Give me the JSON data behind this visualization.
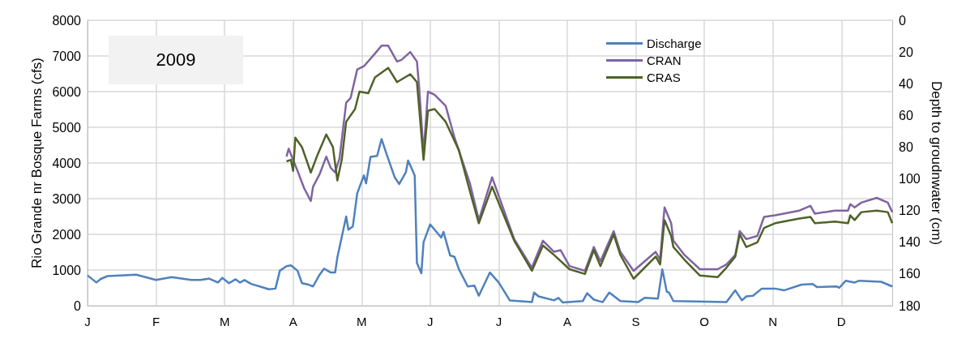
{
  "chart_data": {
    "type": "line",
    "title": "2009",
    "ylabel": "Rio Grande nr Bosque Farms (cfs)",
    "y2label": "Depth to groudnwater (cm)",
    "categories": [
      "J",
      null,
      null,
      null,
      null,
      null,
      null,
      null,
      null,
      null,
      null,
      null,
      null,
      null,
      null,
      null,
      null,
      null,
      null,
      null,
      null,
      null,
      null,
      null,
      null,
      null,
      null,
      null,
      null,
      null,
      null,
      "F",
      null,
      null,
      null,
      null,
      null,
      null,
      null,
      null,
      null,
      null,
      null,
      null,
      null,
      null,
      null,
      null,
      null,
      null,
      null,
      null,
      null,
      null,
      null,
      null,
      null,
      null,
      null,
      null,
      null,
      null,
      "M",
      null,
      null,
      null,
      null,
      null,
      null,
      null,
      null,
      null,
      null,
      null,
      null,
      null,
      null,
      null,
      null,
      null,
      null,
      null,
      null,
      null,
      null,
      null,
      null,
      null,
      null,
      null,
      null,
      null,
      null,
      "A",
      null,
      null,
      null,
      null,
      null,
      null,
      null,
      null,
      null,
      null,
      null,
      null,
      null,
      null,
      null,
      null,
      null,
      null,
      null,
      null,
      null,
      null,
      null,
      null,
      null,
      null,
      null,
      null,
      null,
      null,
      "M",
      null,
      null,
      null,
      null,
      null,
      null,
      null,
      null,
      null,
      null,
      null,
      null,
      null,
      null,
      null,
      null,
      null,
      null,
      null,
      null,
      null,
      null,
      null,
      null,
      null,
      null,
      null,
      null,
      null,
      null,
      "J",
      null,
      null,
      null,
      null,
      null,
      null,
      null,
      null,
      null,
      null,
      null,
      null,
      null,
      null,
      null,
      null,
      null,
      null,
      null,
      null,
      null,
      null,
      null,
      null,
      null,
      null,
      null,
      null,
      null,
      null,
      "J",
      null,
      null,
      null,
      null,
      null,
      null,
      null,
      null,
      null,
      null,
      null,
      null,
      null,
      null,
      null,
      null,
      null,
      null,
      null,
      null,
      null,
      null,
      null,
      null,
      null,
      null,
      null,
      null,
      null,
      null,
      "A",
      null,
      null,
      null,
      null,
      null,
      null,
      null,
      null,
      null,
      null,
      null,
      null,
      null,
      null,
      null,
      null,
      null,
      null,
      null,
      null,
      null,
      null,
      null,
      null,
      null,
      null,
      null,
      null,
      null,
      null,
      "S",
      null,
      null,
      null,
      null,
      null,
      null,
      null,
      null,
      null,
      null,
      null,
      null,
      null,
      null,
      null,
      null,
      null,
      null,
      null,
      null,
      null,
      null,
      null,
      null,
      null,
      null,
      null,
      null,
      null,
      null,
      "O",
      null,
      null,
      null,
      null,
      null,
      null,
      null,
      null,
      null,
      null,
      null,
      null,
      null,
      null,
      null,
      null,
      null,
      null,
      null,
      null,
      null,
      null,
      null,
      null,
      null,
      null,
      null,
      null,
      null,
      null,
      "N",
      null,
      null,
      null,
      null,
      null,
      null,
      null,
      null,
      null,
      null,
      null,
      null,
      null,
      null,
      null,
      null,
      null,
      null,
      null,
      null,
      null,
      null,
      null,
      null,
      null,
      null,
      null,
      null,
      null,
      null,
      "D",
      null,
      null,
      null,
      null,
      null,
      null,
      null,
      null,
      null,
      null,
      null,
      null,
      null,
      null,
      null,
      null,
      null,
      null,
      null,
      null,
      null,
      null,
      null
    ],
    "ylim": [
      0,
      8000
    ],
    "yticks": [
      0,
      1000,
      2000,
      3000,
      4000,
      5000,
      6000,
      7000,
      8000
    ],
    "y2lim": [
      180,
      0
    ],
    "y2ticks": [
      0,
      20,
      40,
      60,
      80,
      100,
      120,
      140,
      160,
      180
    ],
    "grid": true,
    "legend": "top",
    "marker": "none",
    "line_style": "solid",
    "series": [
      {
        "name": "Discharge",
        "color": "#4f81bd",
        "values": [
          850,
          null,
          null,
          null,
          650,
          null,
          750,
          null,
          null,
          830,
          null,
          null,
          null,
          null,
          null,
          null,
          null,
          null,
          null,
          null,
          null,
          null,
          870,
          null,
          null,
          null,
          null,
          null,
          null,
          null,
          null,
          720,
          null,
          null,
          null,
          null,
          null,
          null,
          800,
          null,
          null,
          null,
          null,
          null,
          null,
          null,
          null,
          720,
          null,
          null,
          null,
          720,
          null,
          null,
          null,
          760,
          null,
          null,
          null,
          650,
          null,
          780,
          null,
          null,
          630,
          null,
          null,
          740,
          null,
          650,
          null,
          720,
          null,
          null,
          610,
          null,
          null,
          null,
          null,
          null,
          500,
          null,
          460,
          null,
          null,
          480,
          null,
          980,
          null,
          null,
          1110,
          null,
          1130,
          null,
          null,
          980,
          null,
          630,
          null,
          null,
          590,
          null,
          540,
          null,
          null,
          870,
          null,
          1040,
          null,
          null,
          930,
          null,
          930,
          1350,
          null,
          null,
          null,
          2500,
          2130,
          null,
          2220,
          null,
          3150,
          null,
          null,
          3650,
          3430,
          null,
          4170,
          null,
          null,
          4200,
          null,
          4670,
          null,
          4300,
          null,
          null,
          null,
          3590,
          null,
          3410,
          null,
          null,
          3740,
          4070,
          null,
          null,
          3650,
          1200,
          null,
          910,
          1780,
          null,
          null,
          2280,
          null,
          2130,
          null,
          null,
          1910,
          2070,
          null,
          null,
          1410,
          null,
          1370,
          null,
          1020,
          null,
          null,
          null,
          540,
          null,
          null,
          560,
          null,
          280,
          null,
          null,
          null,
          null,
          930,
          null,
          null,
          null,
          650,
          null,
          null,
          null,
          null,
          150,
          null,
          null,
          null,
          null,
          null,
          null,
          null,
          null,
          null,
          100,
          370,
          null,
          260,
          null,
          null,
          null,
          null,
          null,
          null,
          150,
          null,
          220,
          null,
          90,
          null,
          null,
          null,
          null,
          null,
          null,
          null,
          null,
          130,
          null,
          350,
          null,
          null,
          170,
          null,
          null,
          null,
          100,
          null,
          null,
          370,
          null,
          null,
          null,
          null,
          130,
          null,
          null,
          null,
          null,
          null,
          null,
          null,
          100,
          null,
          null,
          220,
          null,
          null,
          null,
          null,
          null,
          200,
          null,
          1020,
          null,
          390,
          370,
          null,
          130,
          null,
          null,
          null,
          null,
          null,
          null,
          null,
          null,
          null,
          null,
          null,
          null,
          null,
          null,
          null,
          null,
          null,
          null,
          null,
          null,
          null,
          null,
          null,
          100,
          null,
          null,
          null,
          430,
          null,
          null,
          150,
          null,
          260,
          null,
          null,
          280,
          null,
          null,
          null,
          480,
          null,
          null,
          null,
          null,
          null,
          480,
          null,
          null,
          null,
          430,
          null,
          null,
          null,
          null,
          null,
          null,
          null,
          590,
          null,
          null,
          null,
          null,
          610,
          null,
          520,
          null,
          null,
          null,
          null,
          null,
          null,
          null,
          null,
          540,
          500,
          null,
          null,
          700,
          null,
          null,
          null,
          650,
          null,
          700,
          null,
          null,
          null,
          null,
          null,
          null,
          null,
          null,
          null,
          670,
          null,
          null,
          null,
          null,
          540
        ]
      },
      {
        "name": "CRAN",
        "color": "#8064a2",
        "axis": "y2",
        "values": [
          null,
          null,
          null,
          null,
          null,
          null,
          null,
          null,
          null,
          null,
          null,
          null,
          null,
          null,
          null,
          null,
          null,
          null,
          null,
          null,
          null,
          null,
          null,
          null,
          null,
          null,
          null,
          null,
          null,
          null,
          null,
          null,
          null,
          null,
          null,
          null,
          null,
          null,
          null,
          null,
          null,
          null,
          null,
          null,
          null,
          null,
          null,
          null,
          null,
          null,
          null,
          null,
          null,
          null,
          null,
          null,
          null,
          null,
          null,
          null,
          null,
          null,
          null,
          null,
          null,
          null,
          null,
          null,
          null,
          null,
          null,
          null,
          null,
          null,
          null,
          null,
          null,
          null,
          null,
          null,
          null,
          null,
          null,
          null,
          null,
          null,
          null,
          null,
          null,
          null,
          86,
          81,
          null,
          88,
          null,
          95,
          null,
          null,
          106,
          null,
          null,
          114,
          105,
          null,
          null,
          97,
          null,
          null,
          86,
          null,
          93,
          null,
          96,
          null,
          87,
          null,
          null,
          52,
          null,
          49,
          null,
          null,
          31,
          null,
          null,
          29,
          null,
          null,
          null,
          null,
          21,
          null,
          null,
          16,
          null,
          null,
          16,
          null,
          null,
          null,
          26,
          null,
          25,
          null,
          null,
          null,
          20,
          null,
          null,
          26,
          42,
          null,
          84,
          null,
          45,
          null,
          null,
          47,
          null,
          null,
          null,
          null,
          54,
          null,
          null,
          null,
          74,
          null,
          null,
          null,
          null,
          null,
          null,
          103,
          null,
          null,
          null,
          126,
          null,
          null,
          null,
          null,
          null,
          99,
          null,
          null,
          null,
          null,
          null,
          null,
          null,
          null,
          null,
          138,
          null,
          null,
          null,
          null,
          null,
          null,
          null,
          156,
          null,
          null,
          null,
          null,
          139,
          null,
          null,
          null,
          null,
          146,
          null,
          null,
          145,
          null,
          null,
          null,
          155,
          null,
          null,
          null,
          null,
          null,
          null,
          158,
          null,
          null,
          null,
          143,
          null,
          null,
          152,
          null,
          null,
          null,
          null,
          null,
          133,
          null,
          null,
          146,
          null,
          null,
          null,
          null,
          null,
          158,
          null,
          null,
          null,
          null,
          null,
          null,
          null,
          null,
          null,
          146,
          null,
          151,
          null,
          118,
          null,
          null,
          128,
          139,
          null,
          null,
          null,
          null,
          148,
          null,
          null,
          null,
          null,
          null,
          null,
          157,
          null,
          null,
          null,
          null,
          null,
          null,
          null,
          157,
          null,
          null,
          null,
          154,
          null,
          null,
          null,
          148,
          null,
          133,
          null,
          null,
          138,
          null,
          null,
          null,
          null,
          136,
          null,
          null,
          124,
          null,
          null,
          null,
          null,
          123,
          null,
          null,
          null,
          null,
          null,
          null,
          null,
          null,
          null,
          null,
          120,
          null,
          null,
          null,
          null,
          117,
          null,
          122,
          null,
          null,
          null,
          null,
          null,
          null,
          null,
          null,
          120,
          null,
          null,
          null,
          null,
          null,
          120,
          116,
          null,
          118,
          null,
          null,
          115,
          null,
          null,
          null,
          null,
          null,
          null,
          112,
          null,
          null,
          null,
          null,
          115,
          null,
          121
        ]
      },
      {
        "name": "CRAS",
        "color": "#4f6228",
        "axis": "y2",
        "values": [
          null,
          null,
          null,
          null,
          null,
          null,
          null,
          null,
          null,
          null,
          null,
          null,
          null,
          null,
          null,
          null,
          null,
          null,
          null,
          null,
          null,
          null,
          null,
          null,
          null,
          null,
          null,
          null,
          null,
          null,
          null,
          null,
          null,
          null,
          null,
          null,
          null,
          null,
          null,
          null,
          null,
          null,
          null,
          null,
          null,
          null,
          null,
          null,
          null,
          null,
          null,
          null,
          null,
          null,
          null,
          null,
          null,
          null,
          null,
          null,
          null,
          null,
          null,
          null,
          null,
          null,
          null,
          null,
          null,
          null,
          null,
          null,
          null,
          null,
          null,
          null,
          null,
          null,
          null,
          null,
          null,
          null,
          null,
          null,
          null,
          null,
          null,
          null,
          null,
          null,
          89,
          null,
          88,
          95,
          74,
          null,
          null,
          80,
          null,
          null,
          null,
          96,
          null,
          null,
          85,
          null,
          null,
          null,
          72,
          null,
          null,
          80,
          null,
          101,
          null,
          88,
          null,
          64,
          null,
          null,
          null,
          56,
          null,
          45,
          null,
          null,
          null,
          46,
          null,
          null,
          36,
          null,
          null,
          null,
          null,
          null,
          30,
          null,
          null,
          null,
          39,
          null,
          null,
          null,
          null,
          null,
          34,
          null,
          null,
          39,
          null,
          null,
          88,
          null,
          57,
          null,
          null,
          56,
          null,
          null,
          null,
          null,
          64,
          null,
          null,
          null,
          null,
          null,
          82,
          null,
          null,
          null,
          null,
          108,
          null,
          null,
          null,
          128,
          null,
          null,
          null,
          null,
          null,
          105,
          null,
          null,
          null,
          null,
          null,
          null,
          null,
          null,
          null,
          139,
          null,
          null,
          null,
          null,
          null,
          null,
          null,
          158,
          null,
          null,
          null,
          null,
          142,
          null,
          null,
          null,
          null,
          148,
          null,
          null,
          null,
          null,
          null,
          null,
          157,
          null,
          null,
          null,
          null,
          null,
          null,
          160,
          null,
          null,
          null,
          145,
          null,
          null,
          155,
          null,
          null,
          null,
          null,
          null,
          135,
          null,
          null,
          148,
          null,
          null,
          null,
          null,
          null,
          163,
          null,
          null,
          null,
          null,
          null,
          null,
          null,
          null,
          null,
          149,
          null,
          154,
          null,
          126,
          null,
          null,
          136,
          143,
          null,
          null,
          null,
          null,
          151,
          null,
          null,
          null,
          null,
          null,
          null,
          161,
          null,
          null,
          null,
          null,
          null,
          null,
          null,
          162,
          null,
          null,
          null,
          156,
          null,
          null,
          null,
          149,
          null,
          135,
          null,
          null,
          143,
          null,
          null,
          null,
          null,
          140,
          null,
          null,
          131,
          null,
          null,
          null,
          null,
          128,
          null,
          null,
          null,
          null,
          null,
          null,
          null,
          null,
          null,
          null,
          125,
          null,
          null,
          null,
          null,
          124,
          null,
          128,
          null,
          null,
          null,
          null,
          null,
          null,
          null,
          null,
          127,
          null,
          null,
          null,
          null,
          null,
          128,
          123,
          null,
          126,
          null,
          null,
          121,
          null,
          null,
          null,
          null,
          null,
          null,
          120,
          null,
          null,
          null,
          null,
          121,
          null,
          128
        ]
      }
    ]
  }
}
